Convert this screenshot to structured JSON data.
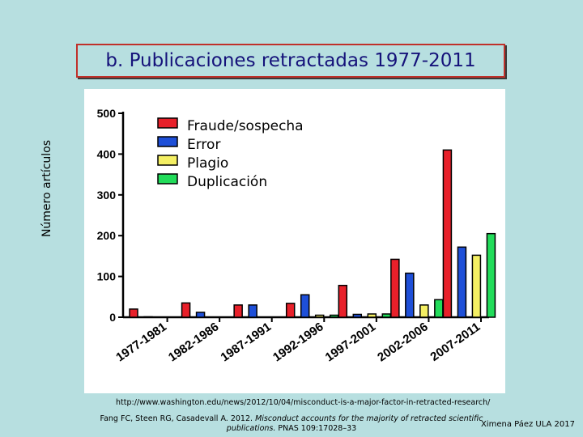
{
  "slide": {
    "title": "b. Publicaciones retractadas 1977-2011",
    "footer_url": "http://www.washington.edu/news/2012/10/04/misconduct-is-a-major-factor-in-retracted-research/",
    "footer_ref_plain": "Fang FC, Steen RG, Casadevall A. 2012.",
    "footer_ref_italic": "Misconduct accounts for the majority of retracted scientific publications.",
    "footer_ref_journal": "PNAS 109:17028–33",
    "author": "Ximena Páez ULA 2017"
  },
  "chart_data": {
    "type": "bar",
    "ylabel": "Número artículos",
    "ylim": [
      0,
      500
    ],
    "yticks": [
      "0",
      "100",
      "200",
      "300",
      "400",
      "500"
    ],
    "legend_position": "top-left",
    "categories": [
      "1977-1981",
      "1982-1986",
      "1987-1991",
      "1992-1996",
      "1997-2001",
      "2002-2006",
      "2007-2011"
    ],
    "series": [
      {
        "name": "Fraude/sospecha",
        "color": "#e8202a",
        "values": [
          20,
          35,
          30,
          34,
          78,
          142,
          410
        ]
      },
      {
        "name": "Error",
        "color": "#1e4fd8",
        "values": [
          1,
          12,
          30,
          55,
          7,
          108,
          172
        ]
      },
      {
        "name": "Plagio",
        "color": "#f4ef63",
        "values": [
          0,
          0,
          0,
          5,
          8,
          30,
          152
        ]
      },
      {
        "name": "Duplicación",
        "color": "#22dc5a",
        "values": [
          0,
          0,
          0,
          5,
          8,
          43,
          205
        ]
      }
    ]
  }
}
